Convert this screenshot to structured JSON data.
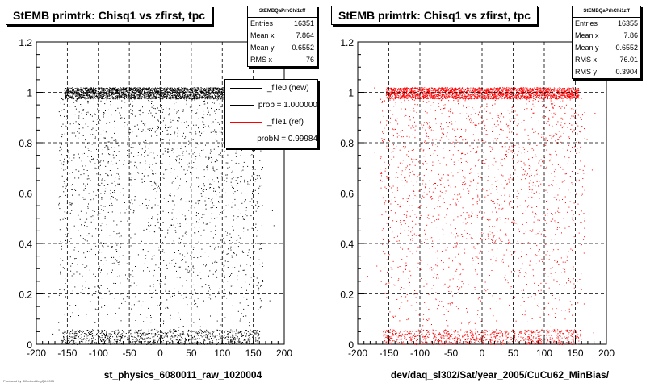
{
  "chart_data": [
    {
      "type": "scatter",
      "title": "StEMB primtrk: Chisq1  vs zfirst, tpc",
      "xlabel": "st_physics_6080011_raw_1020004",
      "ylabel": "",
      "xlim": [
        -200,
        200
      ],
      "ylim": [
        0,
        1.2
      ],
      "x_ticks": [
        -200,
        -150,
        -100,
        -50,
        0,
        50,
        100,
        150,
        200
      ],
      "y_ticks": [
        0,
        0.2,
        0.4,
        0.6,
        0.8,
        1,
        1.2
      ],
      "grid": true,
      "color": "#000000",
      "series": [
        {
          "name": "_file0 (new)",
          "x_range": [
            -165,
            165
          ],
          "dense_y_bands": [
            [
              0.98,
              1.02
            ],
            [
              0.0,
              0.06
            ]
          ],
          "entries": 16351
        }
      ],
      "stats": {
        "title": "StEMBQaPrhChi1zff",
        "rows": [
          {
            "label": "Entries",
            "value": "16351"
          },
          {
            "label": "Mean x",
            "value": "7.864"
          },
          {
            "label": "Mean y",
            "value": "0.6552"
          },
          {
            "label": "RMS x",
            "value": "76"
          }
        ]
      },
      "legend": [
        {
          "label": "_file0 (new)",
          "color": "#000000"
        },
        {
          "label": "prob = 1.000000",
          "color": "#000000"
        },
        {
          "label": "_file1 (ref)",
          "color": "#ff0000"
        },
        {
          "label": "probN = 0.99984",
          "color": "#ff0000"
        }
      ]
    },
    {
      "type": "scatter",
      "title": "StEMB primtrk: Chisq1  vs zfirst, tpc",
      "xlabel": "dev/daq_sl302/Sat/year_2005/CuCu62_MinBias/",
      "ylabel": "",
      "xlim": [
        -200,
        200
      ],
      "ylim": [
        0,
        1.2
      ],
      "x_ticks": [
        -200,
        -150,
        -100,
        -50,
        0,
        50,
        100,
        150,
        200
      ],
      "y_ticks": [
        0,
        0.2,
        0.4,
        0.6,
        0.8,
        1,
        1.2
      ],
      "grid": true,
      "color": "#ff0000",
      "series": [
        {
          "name": "_file1 (ref)",
          "x_range": [
            -165,
            165
          ],
          "dense_y_bands": [
            [
              0.98,
              1.02
            ],
            [
              0.0,
              0.06
            ]
          ],
          "entries": 16355
        }
      ],
      "stats": {
        "title": "StEMBQaPrhChi1zff",
        "rows": [
          {
            "label": "Entries",
            "value": "16355"
          },
          {
            "label": "Mean x",
            "value": "7.86"
          },
          {
            "label": "Mean y",
            "value": "0.6552"
          },
          {
            "label": "RMS x",
            "value": "76.01"
          },
          {
            "label": "RMS y",
            "value": "0.3904"
          }
        ]
      }
    }
  ],
  "footer": "Produced by StEmbeddingQA 2005"
}
